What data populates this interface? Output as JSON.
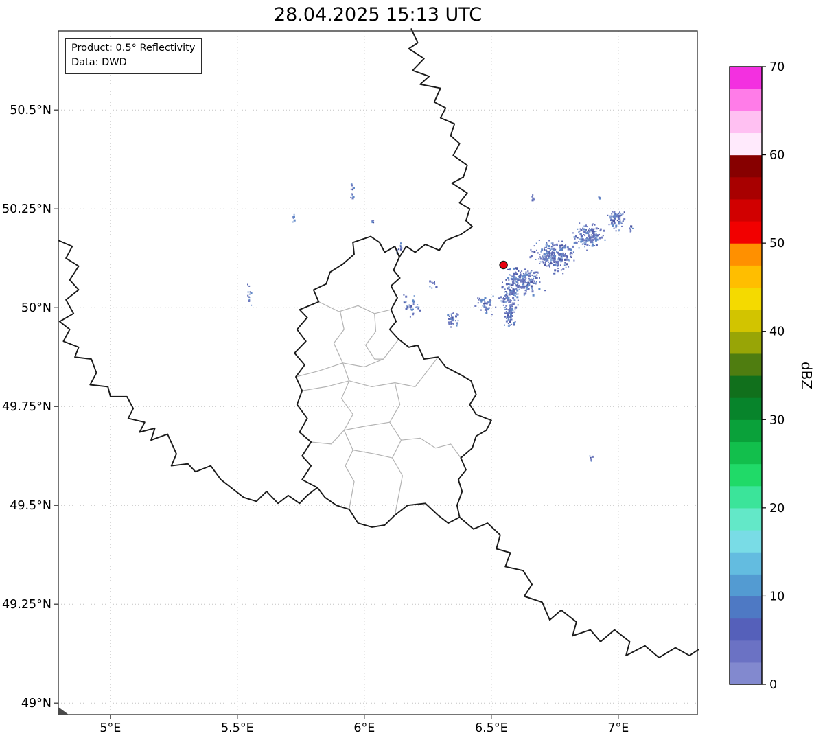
{
  "title": "28.04.2025 15:13 UTC",
  "annotation_box": {
    "line1": "Product: 0.5° Reflectivity",
    "line2": "Data: DWD"
  },
  "axes": {
    "x_ticks": [
      {
        "value": 5.0,
        "label": "5°E"
      },
      {
        "value": 5.5,
        "label": "5.5°E"
      },
      {
        "value": 6.0,
        "label": "6°E"
      },
      {
        "value": 6.5,
        "label": "6.5°E"
      },
      {
        "value": 7.0,
        "label": "7°E"
      }
    ],
    "y_ticks": [
      {
        "value": 50.5,
        "label": "50.5°N"
      },
      {
        "value": 50.25,
        "label": "50.25°N"
      },
      {
        "value": 50.0,
        "label": "50°N"
      },
      {
        "value": 49.75,
        "label": "49.75°N"
      },
      {
        "value": 49.5,
        "label": "49.5°N"
      },
      {
        "value": 49.25,
        "label": "49.25°N"
      },
      {
        "value": 49.0,
        "label": "49°N"
      }
    ]
  },
  "colorbar": {
    "label": "dBZ",
    "min": 0,
    "max": 70,
    "ticks": [
      0,
      10,
      20,
      30,
      40,
      50,
      60,
      70
    ],
    "colors": [
      "#8289cf",
      "#6b72c4",
      "#5560ba",
      "#4e79c4",
      "#539bd2",
      "#63bce0",
      "#79dce6",
      "#63e8c8",
      "#3be49a",
      "#20da68",
      "#12bf4c",
      "#0aa13a",
      "#07842b",
      "#11701c",
      "#4f7d10",
      "#98a506",
      "#d2c400",
      "#f4da00",
      "#ffbe00",
      "#ff9000",
      "#f20000",
      "#d10000",
      "#a80000",
      "#870000",
      "#ffeafc",
      "#ffc0f2",
      "#ff7ce8",
      "#f330e0"
    ]
  },
  "map": {
    "border_color": "#1a1a1a",
    "admin_color": "#b3b3b3",
    "grid_color": "#c3c3c3",
    "radar_site": {
      "lon": 6.548,
      "lat": 50.108,
      "color": "#e80010",
      "edge": "#1a1a1a"
    },
    "national_borders": [
      [
        [
          6.185,
          50.705
        ],
        [
          6.21,
          50.67
        ],
        [
          6.175,
          50.655
        ],
        [
          6.235,
          50.63
        ],
        [
          6.19,
          50.6
        ],
        [
          6.255,
          50.585
        ],
        [
          6.22,
          50.565
        ],
        [
          6.3,
          50.555
        ],
        [
          6.275,
          50.52
        ],
        [
          6.32,
          50.505
        ],
        [
          6.3,
          50.48
        ],
        [
          6.355,
          50.465
        ],
        [
          6.34,
          50.435
        ],
        [
          6.375,
          50.415
        ],
        [
          6.35,
          50.385
        ],
        [
          6.405,
          50.36
        ],
        [
          6.39,
          50.33
        ],
        [
          6.345,
          50.315
        ],
        [
          6.405,
          50.29
        ],
        [
          6.375,
          50.265
        ],
        [
          6.415,
          50.25
        ],
        [
          6.4,
          50.22
        ],
        [
          6.425,
          50.205
        ],
        [
          6.38,
          50.185
        ],
        [
          6.32,
          50.17
        ],
        [
          6.295,
          50.145
        ],
        [
          6.24,
          50.16
        ],
        [
          6.2,
          50.14
        ],
        [
          6.165,
          50.155
        ],
        [
          6.138,
          50.128
        ]
      ],
      [
        [
          6.138,
          50.128
        ],
        [
          6.115,
          50.095
        ],
        [
          6.14,
          50.075
        ],
        [
          6.105,
          50.055
        ],
        [
          6.13,
          50.025
        ],
        [
          6.105,
          49.995
        ],
        [
          6.125,
          49.965
        ],
        [
          6.1,
          49.945
        ],
        [
          6.135,
          49.92
        ],
        [
          6.175,
          49.9
        ],
        [
          6.21,
          49.905
        ],
        [
          6.235,
          49.87
        ],
        [
          6.29,
          49.875
        ],
        [
          6.32,
          49.85
        ],
        [
          6.38,
          49.83
        ],
        [
          6.42,
          49.815
        ],
        [
          6.44,
          49.78
        ],
        [
          6.415,
          49.755
        ],
        [
          6.44,
          49.73
        ],
        [
          6.5,
          49.715
        ],
        [
          6.48,
          49.69
        ],
        [
          6.44,
          49.675
        ],
        [
          6.425,
          49.645
        ],
        [
          6.38,
          49.62
        ],
        [
          6.4,
          49.59
        ],
        [
          6.37,
          49.565
        ],
        [
          6.385,
          49.535
        ],
        [
          6.365,
          49.5
        ],
        [
          6.375,
          49.47
        ],
        [
          6.33,
          49.455
        ],
        [
          6.29,
          49.475
        ],
        [
          6.24,
          49.505
        ],
        [
          6.17,
          49.5
        ],
        [
          6.12,
          49.475
        ],
        [
          6.08,
          49.45
        ],
        [
          6.03,
          49.445
        ],
        [
          5.975,
          49.455
        ],
        [
          5.94,
          49.49
        ],
        [
          5.89,
          49.5
        ],
        [
          5.845,
          49.52
        ],
        [
          5.815,
          49.545
        ],
        [
          5.755,
          49.565
        ],
        [
          5.79,
          49.6
        ],
        [
          5.755,
          49.625
        ],
        [
          5.79,
          49.66
        ],
        [
          5.745,
          49.685
        ],
        [
          5.775,
          49.72
        ],
        [
          5.735,
          49.755
        ],
        [
          5.755,
          49.79
        ],
        [
          5.73,
          49.825
        ],
        [
          5.765,
          49.855
        ],
        [
          5.725,
          49.885
        ],
        [
          5.77,
          49.915
        ],
        [
          5.735,
          49.945
        ],
        [
          5.775,
          49.975
        ],
        [
          5.745,
          49.995
        ],
        [
          5.82,
          50.015
        ],
        [
          5.8,
          50.045
        ],
        [
          5.85,
          50.06
        ],
        [
          5.865,
          50.09
        ],
        [
          5.915,
          50.11
        ],
        [
          5.96,
          50.135
        ],
        [
          5.955,
          50.165
        ],
        [
          6.025,
          50.18
        ],
        [
          6.06,
          50.165
        ],
        [
          6.08,
          50.14
        ],
        [
          6.12,
          50.155
        ],
        [
          6.138,
          50.128
        ]
      ],
      [
        [
          4.795,
          50.17
        ],
        [
          4.85,
          50.155
        ],
        [
          4.825,
          50.125
        ],
        [
          4.875,
          50.105
        ],
        [
          4.84,
          50.07
        ],
        [
          4.875,
          50.045
        ],
        [
          4.825,
          50.02
        ],
        [
          4.855,
          49.985
        ],
        [
          4.8,
          49.965
        ],
        [
          4.84,
          49.945
        ],
        [
          4.815,
          49.915
        ],
        [
          4.875,
          49.9
        ],
        [
          4.86,
          49.875
        ],
        [
          4.925,
          49.87
        ],
        [
          4.945,
          49.835
        ],
        [
          4.92,
          49.805
        ],
        [
          4.99,
          49.8
        ],
        [
          5.0,
          49.775
        ],
        [
          5.065,
          49.775
        ],
        [
          5.09,
          49.745
        ],
        [
          5.07,
          49.72
        ],
        [
          5.135,
          49.71
        ],
        [
          5.115,
          49.685
        ],
        [
          5.175,
          49.695
        ],
        [
          5.16,
          49.665
        ],
        [
          5.225,
          49.68
        ],
        [
          5.26,
          49.63
        ],
        [
          5.24,
          49.6
        ],
        [
          5.305,
          49.605
        ],
        [
          5.335,
          49.585
        ],
        [
          5.395,
          49.6
        ],
        [
          5.435,
          49.565
        ],
        [
          5.475,
          49.545
        ],
        [
          5.525,
          49.52
        ],
        [
          5.575,
          49.51
        ],
        [
          5.615,
          49.535
        ],
        [
          5.66,
          49.505
        ],
        [
          5.7,
          49.525
        ],
        [
          5.745,
          49.505
        ],
        [
          5.775,
          49.525
        ],
        [
          5.815,
          49.545
        ]
      ],
      [
        [
          6.375,
          49.47
        ],
        [
          6.43,
          49.44
        ],
        [
          6.485,
          49.455
        ],
        [
          6.535,
          49.425
        ],
        [
          6.52,
          49.39
        ],
        [
          6.575,
          49.38
        ],
        [
          6.555,
          49.345
        ],
        [
          6.625,
          49.335
        ],
        [
          6.66,
          49.3
        ],
        [
          6.63,
          49.27
        ],
        [
          6.7,
          49.255
        ],
        [
          6.73,
          49.21
        ],
        [
          6.775,
          49.235
        ],
        [
          6.835,
          49.205
        ],
        [
          6.82,
          49.17
        ],
        [
          6.89,
          49.185
        ],
        [
          6.93,
          49.155
        ],
        [
          6.985,
          49.185
        ],
        [
          7.045,
          49.155
        ],
        [
          7.03,
          49.12
        ],
        [
          7.105,
          49.145
        ],
        [
          7.16,
          49.115
        ],
        [
          7.225,
          49.14
        ],
        [
          7.28,
          49.12
        ],
        [
          7.315,
          49.135
        ]
      ]
    ],
    "admin_borders": [
      [
        [
          5.82,
          50.015
        ],
        [
          5.9,
          49.99
        ],
        [
          5.975,
          50.005
        ],
        [
          6.04,
          49.985
        ],
        [
          6.105,
          49.995
        ]
      ],
      [
        [
          5.905,
          49.99
        ],
        [
          5.92,
          49.945
        ],
        [
          5.88,
          49.91
        ],
        [
          5.915,
          49.86
        ]
      ],
      [
        [
          5.73,
          49.825
        ],
        [
          5.82,
          49.84
        ],
        [
          5.915,
          49.86
        ],
        [
          6.0,
          49.85
        ],
        [
          6.075,
          49.87
        ],
        [
          6.135,
          49.92
        ]
      ],
      [
        [
          6.04,
          49.985
        ],
        [
          6.045,
          49.94
        ],
        [
          6.005,
          49.905
        ],
        [
          6.04,
          49.87
        ],
        [
          6.075,
          49.87
        ]
      ],
      [
        [
          5.915,
          49.86
        ],
        [
          5.94,
          49.815
        ],
        [
          5.91,
          49.77
        ],
        [
          5.955,
          49.73
        ],
        [
          5.92,
          49.69
        ]
      ],
      [
        [
          5.755,
          49.79
        ],
        [
          5.85,
          49.8
        ],
        [
          5.94,
          49.815
        ],
        [
          6.03,
          49.8
        ],
        [
          6.12,
          49.81
        ],
        [
          6.2,
          49.8
        ],
        [
          6.29,
          49.875
        ]
      ],
      [
        [
          6.12,
          49.81
        ],
        [
          6.14,
          49.755
        ],
        [
          6.1,
          49.71
        ],
        [
          6.145,
          49.665
        ],
        [
          6.11,
          49.62
        ],
        [
          6.15,
          49.575
        ],
        [
          6.12,
          49.475
        ]
      ],
      [
        [
          5.92,
          49.69
        ],
        [
          6.0,
          49.7
        ],
        [
          6.1,
          49.71
        ]
      ],
      [
        [
          5.79,
          49.66
        ],
        [
          5.87,
          49.655
        ],
        [
          5.92,
          49.69
        ]
      ],
      [
        [
          5.92,
          49.69
        ],
        [
          5.955,
          49.64
        ],
        [
          5.925,
          49.6
        ],
        [
          5.96,
          49.56
        ],
        [
          5.94,
          49.49
        ]
      ],
      [
        [
          5.955,
          49.64
        ],
        [
          6.04,
          49.63
        ],
        [
          6.11,
          49.62
        ]
      ],
      [
        [
          6.145,
          49.665
        ],
        [
          6.22,
          49.67
        ],
        [
          6.28,
          49.645
        ],
        [
          6.34,
          49.655
        ],
        [
          6.38,
          49.62
        ]
      ],
      [
        [
          6.135,
          49.92
        ],
        [
          6.1,
          49.945
        ]
      ]
    ],
    "echo_palette": [
      {
        "c": "#707cc0",
        "w": 0.35
      },
      {
        "c": "#5a68b4",
        "w": 0.25
      },
      {
        "c": "#6189c8",
        "w": 0.2
      },
      {
        "c": "#8aa8d8",
        "w": 0.12
      },
      {
        "c": "#4a55a0",
        "w": 0.08
      }
    ],
    "echo_clusters": [
      {
        "lon": 6.62,
        "lat": 50.07,
        "rlon": 0.1,
        "rlat": 0.045,
        "n": 200
      },
      {
        "lon": 6.75,
        "lat": 50.135,
        "rlon": 0.11,
        "rlat": 0.05,
        "n": 260
      },
      {
        "lon": 6.88,
        "lat": 50.185,
        "rlon": 0.08,
        "rlat": 0.04,
        "n": 150
      },
      {
        "lon": 6.99,
        "lat": 50.225,
        "rlon": 0.05,
        "rlat": 0.035,
        "n": 70
      },
      {
        "lon": 6.57,
        "lat": 50.03,
        "rlon": 0.05,
        "rlat": 0.05,
        "n": 90
      },
      {
        "lon": 6.565,
        "lat": 49.985,
        "rlon": 0.03,
        "rlat": 0.04,
        "n": 80
      },
      {
        "lon": 6.47,
        "lat": 50.01,
        "rlon": 0.05,
        "rlat": 0.03,
        "n": 40
      },
      {
        "lon": 6.35,
        "lat": 49.975,
        "rlon": 0.04,
        "rlat": 0.03,
        "n": 35
      },
      {
        "lon": 6.18,
        "lat": 50.01,
        "rlon": 0.05,
        "rlat": 0.045,
        "n": 30
      },
      {
        "lon": 6.27,
        "lat": 50.06,
        "rlon": 0.03,
        "rlat": 0.02,
        "n": 10
      },
      {
        "lon": 6.14,
        "lat": 50.15,
        "rlon": 0.02,
        "rlat": 0.02,
        "n": 8
      },
      {
        "lon": 5.95,
        "lat": 50.3,
        "rlon": 0.012,
        "rlat": 0.035,
        "n": 16
      },
      {
        "lon": 5.72,
        "lat": 50.225,
        "rlon": 0.01,
        "rlat": 0.018,
        "n": 7
      },
      {
        "lon": 5.545,
        "lat": 50.035,
        "rlon": 0.012,
        "rlat": 0.03,
        "n": 12
      },
      {
        "lon": 6.89,
        "lat": 49.62,
        "rlon": 0.012,
        "rlat": 0.015,
        "n": 6
      },
      {
        "lon": 7.05,
        "lat": 50.2,
        "rlon": 0.02,
        "rlat": 0.015,
        "n": 10
      },
      {
        "lon": 6.66,
        "lat": 50.28,
        "rlon": 0.015,
        "rlat": 0.012,
        "n": 6
      },
      {
        "lon": 6.92,
        "lat": 50.28,
        "rlon": 0.02,
        "rlat": 0.012,
        "n": 5
      },
      {
        "lon": 6.03,
        "lat": 50.22,
        "rlon": 0.012,
        "rlat": 0.01,
        "n": 4
      }
    ]
  },
  "chart_data": {
    "type": "heatmap",
    "title": "28.04.2025 15:13 UTC",
    "xlabel": "",
    "ylabel": "",
    "x_tick_labels": [
      "5°E",
      "5.5°E",
      "6°E",
      "6.5°E",
      "7°E"
    ],
    "y_tick_labels": [
      "50.5°N",
      "50.25°N",
      "50°N",
      "49.75°N",
      "49.5°N",
      "49.25°N",
      "49°N"
    ],
    "x_range_deg_east": [
      4.8,
      7.31
    ],
    "y_range_deg_north": [
      48.97,
      50.7
    ],
    "grid": true,
    "annotation": [
      "Product: 0.5° Reflectivity",
      "Data: DWD"
    ],
    "colorbar": {
      "label": "dBZ",
      "range": [
        0,
        70
      ],
      "ticks": [
        0,
        10,
        20,
        30,
        40,
        50,
        60,
        70
      ],
      "position": "right"
    },
    "radar_site": {
      "lon": 6.55,
      "lat": 50.11,
      "marker": "red dot"
    },
    "echo_values_dBZ_range": [
      0,
      15
    ],
    "echo_regions": [
      {
        "desc": "main weak-echo band extending NE of radar",
        "from": [
          6.35,
          49.95
        ],
        "to": [
          7.05,
          50.27
        ]
      },
      {
        "desc": "isolated cell",
        "at": [
          5.95,
          50.3
        ]
      },
      {
        "desc": "isolated cell",
        "at": [
          5.72,
          50.23
        ]
      },
      {
        "desc": "isolated cell",
        "at": [
          5.54,
          50.04
        ]
      },
      {
        "desc": "scattered specks west of radar",
        "at": [
          6.18,
          50.01
        ]
      },
      {
        "desc": "isolated speck south",
        "at": [
          6.89,
          49.62
        ]
      }
    ]
  }
}
